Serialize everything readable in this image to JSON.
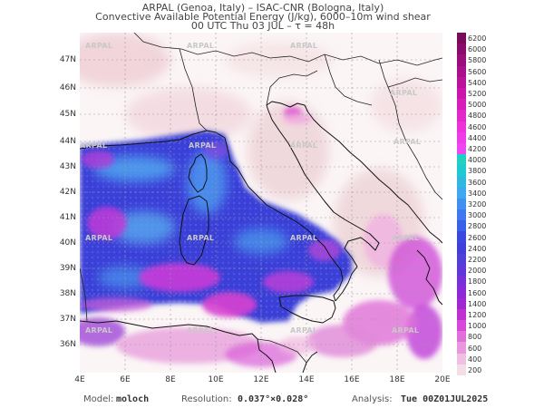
{
  "title": {
    "line1": "ARPAL (Genoa, Italy)  –  ISAC-CNR (Bologna, Italy)",
    "line2": "Convective Available Potential Energy (J/kg), 6000–10m wind shear",
    "line3": "00 UTC Thu 03 JUL  –  τ = 48h"
  },
  "map": {
    "lat_labels": [
      "47N",
      "46N",
      "45N",
      "44N",
      "43N",
      "42N",
      "41N",
      "40N",
      "39N",
      "38N",
      "37N",
      "36N"
    ],
    "lon_labels": [
      "4E",
      "6E",
      "8E",
      "10E",
      "12E",
      "14E",
      "16E",
      "18E",
      "20E"
    ],
    "watermark": "ARPAL",
    "colors": {
      "sea_deep": "#3a3fd8",
      "sea_light": "#4fa6f0",
      "magenta": "#d83fd8",
      "pink": "#f0a0e0",
      "land_pink": "#f3dbe0"
    }
  },
  "colorbar": {
    "labels": [
      "6200",
      "6000",
      "5800",
      "5600",
      "5400",
      "5200",
      "5000",
      "4800",
      "4600",
      "4400",
      "4200",
      "4000",
      "3800",
      "3600",
      "3400",
      "3200",
      "3000",
      "2800",
      "2600",
      "2400",
      "2200",
      "2000",
      "1800",
      "1600",
      "1400",
      "1200",
      "1000",
      "800",
      "600",
      "400",
      "200"
    ],
    "colors": [
      "#7a0a5a",
      "#8a0c6a",
      "#9a0e7a",
      "#aa108a",
      "#ba129a",
      "#ca14aa",
      "#d81eb8",
      "#e228c8",
      "#ec32d8",
      "#f03ce8",
      "#f046f0",
      "#20d0c0",
      "#20c8d0",
      "#30b8e0",
      "#40a8f0",
      "#4090f0",
      "#4078f0",
      "#3a60e8",
      "#3a48e0",
      "#4040d8",
      "#5040d8",
      "#6038d8",
      "#7830d8",
      "#8c2ad8",
      "#a028d0",
      "#c030d0",
      "#d848d8",
      "#e070d8",
      "#e898dc",
      "#f0c0e4",
      "#f5dde6"
    ]
  },
  "footer": {
    "model_label": "Model:",
    "model_value": "moloch",
    "resolution_label": "Resolution:",
    "resolution_value": "0.037°×0.028°",
    "analysis_label": "Analysis:",
    "analysis_value": "Tue 00Z01JUL2025"
  }
}
